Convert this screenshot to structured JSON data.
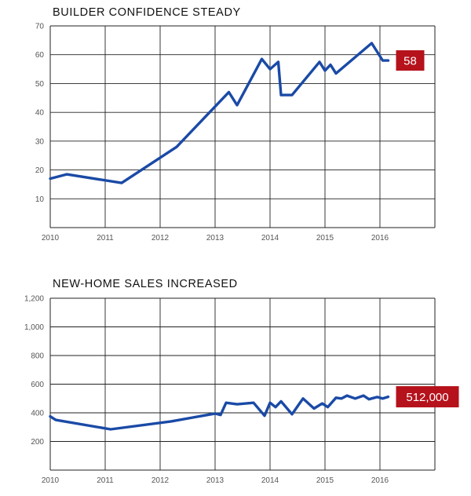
{
  "colors": {
    "line": "#1a4aa6",
    "callout": "#b5121b",
    "grid": "#222222",
    "tick": "#555555"
  },
  "chart_data": [
    {
      "type": "line",
      "title": "BUILDER CONFIDENCE STEADY",
      "xlabel": "",
      "ylabel": "",
      "x_ticks": [
        "2010",
        "2011",
        "2012",
        "2013",
        "2014",
        "2015",
        "2016"
      ],
      "y_ticks": [
        "10",
        "20",
        "30",
        "40",
        "50",
        "60",
        "70"
      ],
      "xlim": [
        2010,
        2017
      ],
      "ylim": [
        0,
        70
      ],
      "grid": true,
      "callout": "58",
      "series": [
        {
          "x": [
            2010.0,
            2010.3,
            2011.3,
            2012.3,
            2013.25,
            2013.4,
            2013.85,
            2014.0,
            2014.15,
            2014.2,
            2014.4,
            2014.9,
            2015.0,
            2015.1,
            2015.2,
            2015.85,
            2016.05,
            2016.15
          ],
          "y": [
            17,
            18.5,
            15.5,
            28,
            47,
            42.5,
            58.5,
            55,
            57.5,
            46,
            46,
            57.5,
            54.5,
            56.5,
            53.5,
            64,
            58,
            58
          ]
        }
      ]
    },
    {
      "type": "line",
      "title": "NEW-HOME SALES INCREASED",
      "xlabel": "",
      "ylabel": "",
      "x_ticks": [
        "2010",
        "2011",
        "2012",
        "2013",
        "2014",
        "2015",
        "2016"
      ],
      "y_ticks": [
        "200",
        "400",
        "600",
        "800",
        "1,000",
        "1,200"
      ],
      "xlim": [
        2010,
        2017
      ],
      "ylim": [
        0,
        1200
      ],
      "grid": true,
      "callout": "512,000",
      "series": [
        {
          "x": [
            2010.0,
            2010.1,
            2011.1,
            2012.2,
            2013.0,
            2013.1,
            2013.2,
            2013.4,
            2013.7,
            2013.9,
            2014.0,
            2014.1,
            2014.2,
            2014.4,
            2014.6,
            2014.8,
            2014.95,
            2015.05,
            2015.2,
            2015.3,
            2015.4,
            2015.55,
            2015.7,
            2015.8,
            2015.95,
            2016.05,
            2016.15
          ],
          "y": [
            375,
            350,
            285,
            340,
            395,
            385,
            470,
            460,
            470,
            380,
            470,
            440,
            480,
            390,
            500,
            430,
            465,
            440,
            505,
            500,
            520,
            500,
            520,
            495,
            510,
            500,
            512
          ]
        }
      ]
    }
  ]
}
